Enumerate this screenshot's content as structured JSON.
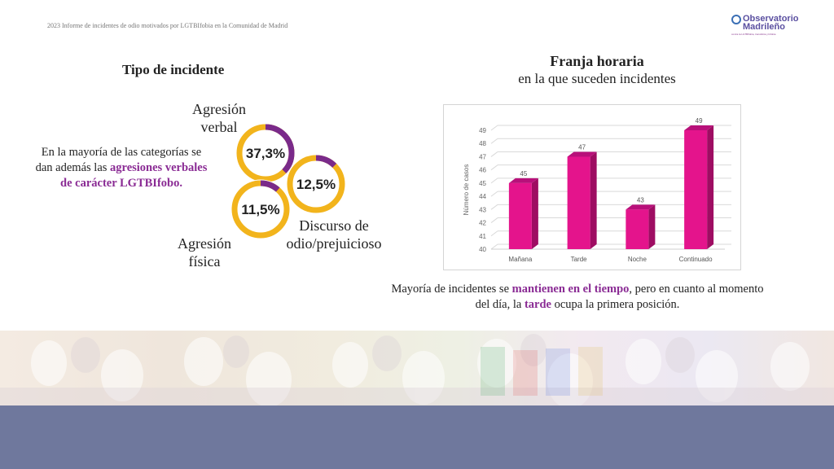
{
  "header": {
    "report_title": "2023 Informe de incidentes de odio motivados por LGTBIfobia en la Comunidad de Madrid",
    "logo_name": "Observatorio Madrileño",
    "logo_sub": "contra la LGTBIfobia, transfobia y bifobia"
  },
  "left": {
    "title": "Tipo de incidente",
    "desc_plain": "En la mayoría de las categorías se dan además las",
    "desc_strong": "agresiones verbales de carácter LGTBIfobo.",
    "labels": {
      "verbal": "Agresión verbal",
      "discurso": "Discurso de odio/prejuicioso",
      "fisica": "Agresión física"
    },
    "donuts": [
      {
        "label": "37,3%",
        "value": 37.3,
        "key": "verbal"
      },
      {
        "label": "12,5%",
        "value": 12.5,
        "key": "discurso"
      },
      {
        "label": "11,5%",
        "value": 11.5,
        "key": "fisica"
      }
    ],
    "colors": {
      "fill": "#f2b41c",
      "accent": "#7a2a8a"
    }
  },
  "right": {
    "title": "Franja horaria",
    "subtitle": "en la que suceden incidentes",
    "caption": {
      "p1": "Mayoría de incidentes se ",
      "b1": "mantienen en el tiempo",
      "p2": ", pero en cuanto al momento del día, la ",
      "b2": "tarde",
      "p3": " ocupa la primera posición."
    }
  },
  "chart_data": {
    "type": "bar",
    "categories": [
      "Mañana",
      "Tarde",
      "Noche",
      "Continuado"
    ],
    "values": [
      45,
      47,
      43,
      49
    ],
    "ylabel": "Número de casos",
    "ylim": [
      40,
      49
    ],
    "yticks": [
      40,
      41,
      42,
      43,
      44,
      45,
      46,
      47,
      48,
      49
    ],
    "grid": true,
    "bar_color": "#e4148c"
  },
  "footer": {
    "band_color": "#6f789d"
  }
}
